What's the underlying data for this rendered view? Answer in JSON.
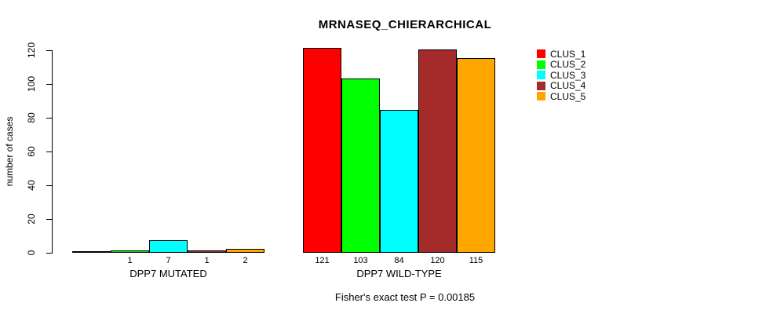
{
  "chart_data": {
    "type": "bar",
    "title": "MRNASEQ_CHIERARCHICAL",
    "ylabel": "number of cases",
    "xlabel": "",
    "footer": "Fisher's exact test P = 0.00185",
    "ylim": [
      0,
      120
    ],
    "yticks": [
      0,
      20,
      40,
      60,
      80,
      100,
      120
    ],
    "grid": false,
    "legend_position": "right",
    "axis_color": "#000000",
    "text_color": "#000000",
    "background_color": "#FFFFFF",
    "series": [
      {
        "name": "CLUS_1",
        "color": "#FF0000"
      },
      {
        "name": "CLUS_2",
        "color": "#00FF00"
      },
      {
        "name": "CLUS_3",
        "color": "#00FFFF"
      },
      {
        "name": "CLUS_4",
        "color": "#A52A2A"
      },
      {
        "name": "CLUS_5",
        "color": "#FFA500"
      }
    ],
    "groups": [
      {
        "label": "DPP7 MUTATED",
        "values": [
          0,
          1,
          7,
          1,
          2
        ],
        "value_labels": [
          "",
          "1",
          "7",
          "1",
          "2"
        ]
      },
      {
        "label": "DPP7 WILD-TYPE",
        "values": [
          121,
          103,
          84,
          120,
          115
        ],
        "value_labels": [
          "121",
          "103",
          "84",
          "120",
          "115"
        ]
      }
    ]
  }
}
